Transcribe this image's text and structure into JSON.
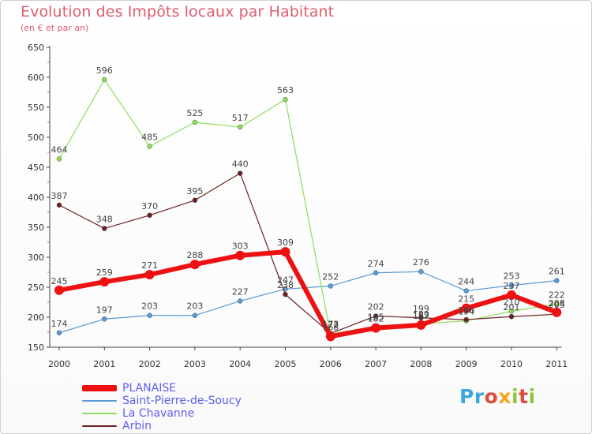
{
  "header": {
    "title": "Evolution des Impôts locaux par Habitant",
    "subtitle": "(en € et par an)"
  },
  "logo": {
    "text": "Proxiti",
    "letters": [
      "P",
      "r",
      "o",
      "x",
      "i",
      "t",
      "i"
    ],
    "colors": [
      "#3ba7e0",
      "#3ba7e0",
      "#e04b3c",
      "#f2a71b",
      "#8cc63f",
      "#e04b3c",
      "#8cc63f"
    ]
  },
  "chart_data": {
    "type": "line",
    "title": "Evolution des Impôts locaux par Habitant",
    "subtitle": "(en € et par an)",
    "x": [
      "2000",
      "2001",
      "2002",
      "2003",
      "2004",
      "2005",
      "2006",
      "2007",
      "2008",
      "2009",
      "2010",
      "2011"
    ],
    "ylim": [
      150,
      650
    ],
    "yticks": [
      "150",
      "200",
      "250",
      "300",
      "350",
      "400",
      "450",
      "500",
      "550",
      "600",
      "650"
    ],
    "grid": false,
    "legend_position": "bottom-left",
    "series": [
      {
        "name": "PLANAISE",
        "color": "#ee1111",
        "values": [
          245,
          259,
          271,
          288,
          303,
          309,
          168,
          182,
          187,
          215,
          237,
          208
        ],
        "labels": [
          "245",
          "259",
          "271",
          "288",
          "303",
          "309",
          "168",
          "182",
          "187",
          "215",
          "237",
          "208"
        ]
      },
      {
        "name": "Saint-Pierre-de-Soucy",
        "color": "#5b9bd5",
        "values": [
          174,
          197,
          203,
          203,
          227,
          247,
          252,
          274,
          276,
          244,
          253,
          261
        ],
        "labels": [
          "174",
          "197",
          "203",
          "203",
          "227",
          "247",
          "252",
          "274",
          "276",
          "244",
          "253",
          "261"
        ]
      },
      {
        "name": "La Chavanne",
        "color": "#8fdc5a",
        "values": [
          464,
          596,
          485,
          525,
          517,
          563,
          172,
          185,
          189,
          194,
          210,
          222
        ],
        "labels": [
          "464",
          "596",
          "485",
          "525",
          "517",
          "563",
          "172",
          "185",
          "189",
          "194",
          "210",
          "222"
        ]
      },
      {
        "name": "Arbin",
        "color": "#6b2222",
        "values": [
          387,
          348,
          370,
          395,
          440,
          238,
          173,
          202,
          199,
          196,
          201,
          205
        ],
        "labels": [
          "387",
          "348",
          "370",
          "395",
          "440",
          "238",
          "173",
          "202",
          "199",
          "196",
          "201",
          "205"
        ]
      }
    ]
  }
}
